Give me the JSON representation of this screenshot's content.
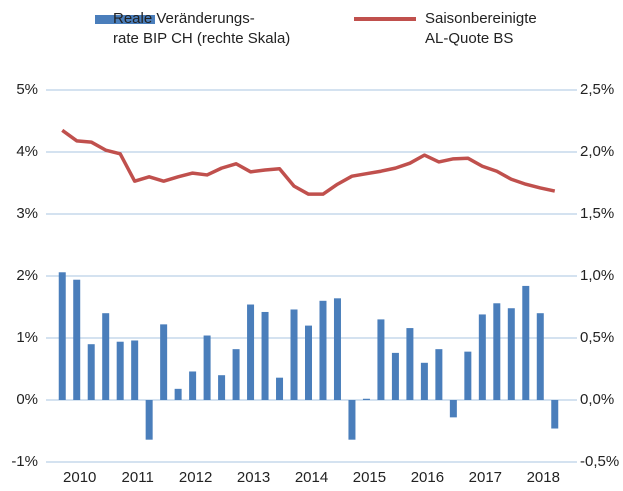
{
  "chart_data": {
    "type": "bar-line",
    "categories": [
      null,
      "2010",
      null,
      null,
      null,
      "2011",
      null,
      null,
      null,
      "2012",
      null,
      null,
      null,
      "2013",
      null,
      null,
      null,
      "2014",
      null,
      null,
      null,
      "2015",
      null,
      null,
      null,
      "2016",
      null,
      null,
      null,
      "2017",
      null,
      null,
      null,
      "2018",
      null
    ],
    "series": [
      {
        "name": "Reale Veränderungs-\nrate BIP CH (rechte Skala)",
        "type": "bar",
        "axis": "y2",
        "color": "#4a7ebb",
        "values": [
          1.03,
          0.97,
          0.45,
          0.7,
          0.47,
          0.48,
          -0.32,
          0.61,
          0.09,
          0.23,
          0.52,
          0.2,
          0.41,
          0.77,
          0.71,
          0.18,
          0.73,
          0.6,
          0.8,
          0.82,
          -0.32,
          0.01,
          0.65,
          0.38,
          0.58,
          0.3,
          0.41,
          -0.14,
          0.39,
          0.69,
          0.78,
          0.74,
          0.92,
          0.7,
          -0.23
        ]
      },
      {
        "name": "Saisonbereinigte\nAL-Quote BS",
        "type": "line",
        "axis": "y",
        "color": "#c0504d",
        "values": [
          4.35,
          4.18,
          4.16,
          4.03,
          3.97,
          3.53,
          3.6,
          3.53,
          3.6,
          3.66,
          3.63,
          3.74,
          3.81,
          3.68,
          3.71,
          3.73,
          3.45,
          3.32,
          3.32,
          3.48,
          3.61,
          3.65,
          3.69,
          3.74,
          3.82,
          3.95,
          3.84,
          3.89,
          3.9,
          3.77,
          3.69,
          3.56,
          3.48,
          3.42,
          3.37
        ]
      }
    ],
    "ylim": [
      -1,
      5
    ],
    "yticks": [
      {
        "value": -1,
        "label": "-1%"
      },
      {
        "value": 0,
        "label": "0%"
      },
      {
        "value": 1,
        "label": "1%"
      },
      {
        "value": 2,
        "label": "2%"
      },
      {
        "value": 3,
        "label": "3%"
      },
      {
        "value": 4,
        "label": "4%"
      },
      {
        "value": 5,
        "label": "5%"
      }
    ],
    "y2lim": [
      -0.5,
      2.5
    ],
    "y2ticks": [
      {
        "value": -0.5,
        "label": "-0,5%"
      },
      {
        "value": 0,
        "label": "0,0%"
      },
      {
        "value": 0.5,
        "label": "0,5%"
      },
      {
        "value": 1,
        "label": "1,0%"
      },
      {
        "value": 1.5,
        "label": "1,5%"
      },
      {
        "value": 2,
        "label": "2,0%"
      },
      {
        "value": 2.5,
        "label": "2,5%"
      }
    ],
    "grid": true,
    "legend": "top"
  }
}
